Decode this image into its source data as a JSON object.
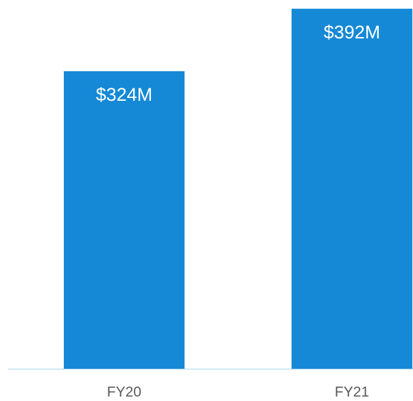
{
  "chart_data": {
    "type": "bar",
    "categories": [
      "FY20",
      "FY21"
    ],
    "values": [
      324,
      392
    ],
    "value_labels": [
      "$324M",
      "$392M"
    ],
    "color": "#1589d6"
  }
}
